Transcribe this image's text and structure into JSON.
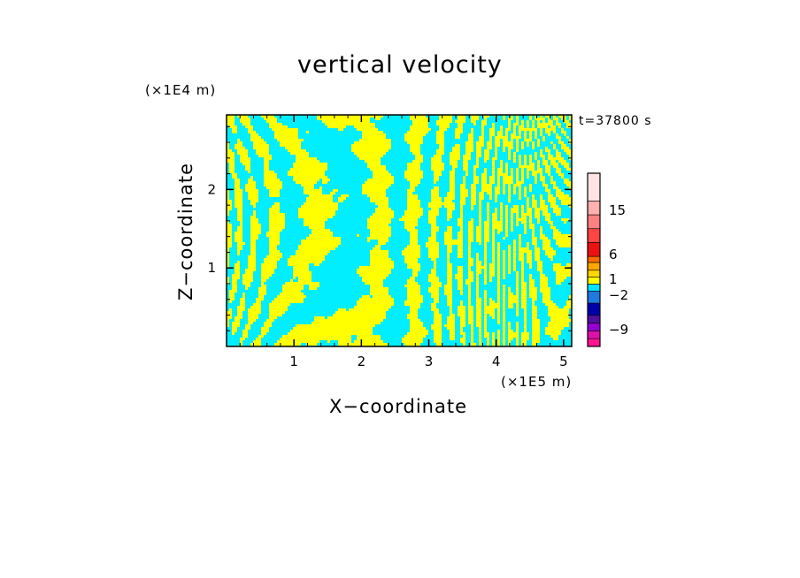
{
  "chart_data": {
    "type": "heatmap",
    "title": "vertical velocity",
    "xlabel": "X−coordinate",
    "ylabel": "Z−coordinate",
    "x_unit": "(×1E5 m)",
    "y_unit": "(×1E4 m)",
    "time_label": "t=37800 s",
    "xlim": [
      0,
      5.12
    ],
    "ylim": [
      0,
      2.95
    ],
    "x_ticks": [
      "1",
      "2",
      "3",
      "4",
      "5"
    ],
    "y_ticks": [
      "1",
      "2"
    ],
    "x_tick_values": [
      1,
      2,
      3,
      4,
      5
    ],
    "y_tick_values": [
      1,
      2
    ],
    "field_colors": {
      "positive_small": "#ffff00",
      "negative_small": "#00eeff"
    },
    "colorbar": {
      "labels": [
        "15",
        "6",
        "1",
        "−2",
        "−9"
      ],
      "label_values": [
        15,
        6,
        1,
        -2,
        -9
      ],
      "colors": [
        "#ff1493",
        "#dd11aa",
        "#9400d3",
        "#5010a0",
        "#0000aa",
        "#1f7ae0",
        "#00e5ff",
        "#ffff00",
        "#ffd700",
        "#ffa500",
        "#ff6a00",
        "#ee1111",
        "#ff4444",
        "#ff8080",
        "#ffb0b0",
        "#ffe4e4"
      ]
    }
  }
}
